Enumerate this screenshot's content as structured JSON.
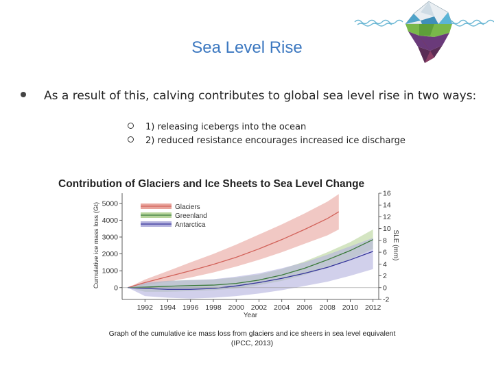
{
  "slide": {
    "title": "Sea Level Rise",
    "bullet": "As a result of this, calving contributes to global sea level rise in two ways:",
    "sub_items": [
      "1) releasing icebergs into the ocean",
      "2) reduced resistance encourages increased ice discharge"
    ],
    "caption_line1": "Graph of the cumulative ice mass loss from glaciers and ice sheers in sea level equivalent",
    "caption_line2": "(IPCC, 2013)"
  },
  "logo": {
    "icon": "iceberg-logo-icon"
  },
  "chart_data": {
    "type": "line",
    "title": "Contribution of Glaciers and Ice Sheets to Sea Level Change",
    "xlabel": "Year",
    "ylabel": "Cumulative ice mass loss (Gt)",
    "y2label": "SLE (mm)",
    "xlim": [
      1990,
      2012.5
    ],
    "ylim": [
      -700,
      5600
    ],
    "y2lim": [
      -2,
      16
    ],
    "x_ticks": [
      1992,
      1994,
      1996,
      1998,
      2000,
      2002,
      2004,
      2006,
      2008,
      2010,
      2012
    ],
    "y_ticks": [
      0,
      1000,
      2000,
      3000,
      4000,
      5000
    ],
    "y2_ticks": [
      -2,
      0,
      2,
      4,
      6,
      8,
      10,
      12,
      14,
      16
    ],
    "legend_position": "top-left",
    "series": [
      {
        "name": "Glaciers",
        "color": "#d2625a",
        "fill": "#e8a49c",
        "x": [
          1990.5,
          1992,
          1994,
          1996,
          1998,
          2000,
          2002,
          2004,
          2006,
          2008,
          2009
        ],
        "y": [
          0,
          300,
          650,
          1000,
          1380,
          1800,
          2300,
          2850,
          3450,
          4100,
          4500
        ],
        "lower": [
          0,
          150,
          350,
          600,
          900,
          1250,
          1650,
          2100,
          2600,
          3100,
          3450
        ],
        "upper": [
          0,
          480,
          980,
          1500,
          2000,
          2550,
          3150,
          3750,
          4400,
          5100,
          5550
        ]
      },
      {
        "name": "Greenland",
        "color": "#3a7a3a",
        "fill": "#b7d49a",
        "x": [
          1990.5,
          1992,
          1994,
          1996,
          1998,
          2000,
          2002,
          2004,
          2006,
          2008,
          2010,
          2012
        ],
        "y": [
          0,
          30,
          80,
          120,
          150,
          250,
          450,
          750,
          1150,
          1650,
          2200,
          2850
        ],
        "lower": [
          0,
          -250,
          -250,
          -200,
          -150,
          -50,
          150,
          400,
          750,
          1200,
          1700,
          2300
        ],
        "upper": [
          0,
          250,
          400,
          450,
          480,
          600,
          780,
          1100,
          1550,
          2100,
          2700,
          3450
        ]
      },
      {
        "name": "Antarctica",
        "color": "#34349a",
        "fill": "#b3b1dd",
        "x": [
          1990.5,
          1992,
          1994,
          1996,
          1998,
          2000,
          2002,
          2004,
          2006,
          2008,
          2010,
          2012
        ],
        "y": [
          0,
          -50,
          -100,
          -100,
          -50,
          100,
          300,
          550,
          850,
          1200,
          1650,
          2150
        ],
        "lower": [
          0,
          -500,
          -600,
          -650,
          -600,
          -500,
          -350,
          -150,
          100,
          350,
          700,
          1100
        ],
        "upper": [
          0,
          300,
          400,
          450,
          500,
          650,
          850,
          1150,
          1500,
          1950,
          2450,
          2950
        ]
      }
    ]
  }
}
